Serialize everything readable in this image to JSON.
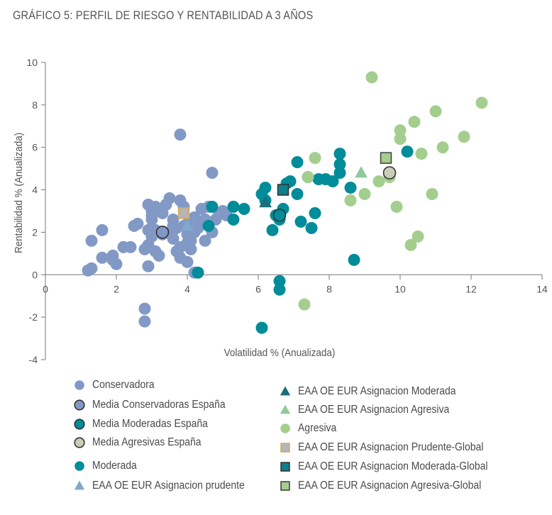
{
  "title": "GRÁFICO 5: PERFIL DE RIESGO Y RENTABILIDAD A 3 AÑOS",
  "chart_data": {
    "type": "scatter",
    "xlabel": "Volatilidad % (Anualizada)",
    "ylabel": "Rentabilidad % (Anualizada)",
    "xlim": [
      0,
      14
    ],
    "ylim": [
      -4,
      10
    ],
    "xticks": [
      "0",
      "2",
      "4",
      "6",
      "8",
      "10",
      "12",
      "14"
    ],
    "yticks": [
      "10",
      "8",
      "6",
      "4",
      "2",
      "0",
      "-2",
      "-4"
    ],
    "grid": false,
    "series": [
      {
        "name": "Conservadora",
        "marker": "circle",
        "color": "#8299C6",
        "border": "none",
        "points": [
          [
            1.2,
            0.2
          ],
          [
            1.3,
            0.3
          ],
          [
            1.3,
            1.6
          ],
          [
            1.6,
            0.8
          ],
          [
            1.6,
            2.1
          ],
          [
            1.9,
            0.7
          ],
          [
            1.9,
            0.9
          ],
          [
            2.0,
            0.5
          ],
          [
            2.2,
            1.3
          ],
          [
            2.4,
            1.3
          ],
          [
            2.5,
            2.3
          ],
          [
            2.6,
            2.4
          ],
          [
            2.8,
            1.2
          ],
          [
            2.9,
            0.4
          ],
          [
            2.9,
            1.4
          ],
          [
            2.9,
            2.1
          ],
          [
            2.9,
            3.3
          ],
          [
            3.0,
            1.8
          ],
          [
            3.0,
            2.6
          ],
          [
            3.0,
            2.8
          ],
          [
            3.1,
            2.1
          ],
          [
            3.1,
            3.2
          ],
          [
            3.1,
            1.1
          ],
          [
            3.2,
            0.9
          ],
          [
            3.3,
            1.9
          ],
          [
            3.3,
            2.9
          ],
          [
            3.4,
            3.3
          ],
          [
            3.5,
            2.0
          ],
          [
            3.5,
            3.6
          ],
          [
            3.6,
            2.1
          ],
          [
            3.6,
            1.7
          ],
          [
            3.6,
            2.6
          ],
          [
            3.7,
            1.1
          ],
          [
            3.7,
            2.2
          ],
          [
            3.8,
            1.3
          ],
          [
            3.8,
            0.8
          ],
          [
            3.8,
            3.5
          ],
          [
            3.9,
            2.3
          ],
          [
            3.9,
            3.2
          ],
          [
            4.0,
            0.6
          ],
          [
            4.0,
            1.5
          ],
          [
            4.0,
            2.4
          ],
          [
            4.1,
            1.2
          ],
          [
            4.1,
            1.6
          ],
          [
            4.2,
            2.0
          ],
          [
            4.2,
            2.7
          ],
          [
            4.2,
            0.1
          ],
          [
            4.3,
            2.2
          ],
          [
            4.4,
            2.5
          ],
          [
            4.4,
            3.1
          ],
          [
            4.5,
            2.6
          ],
          [
            4.5,
            1.6
          ],
          [
            4.6,
            3.2
          ],
          [
            4.7,
            2.0
          ],
          [
            4.8,
            2.6
          ],
          [
            4.9,
            2.9
          ],
          [
            5.0,
            3.0
          ],
          [
            5.1,
            2.8
          ],
          [
            5.3,
            3.2
          ],
          [
            3.8,
            6.6
          ],
          [
            4.7,
            4.8
          ],
          [
            2.8,
            -1.6
          ],
          [
            2.8,
            -2.2
          ],
          [
            3.6,
            2.3
          ],
          [
            3.0,
            3.0
          ],
          [
            4.0,
            1.9
          ]
        ]
      },
      {
        "name": "Moderada",
        "marker": "circle",
        "color": "#008C98",
        "border": "none",
        "points": [
          [
            4.3,
            0.1
          ],
          [
            4.6,
            2.3
          ],
          [
            4.7,
            3.2
          ],
          [
            5.3,
            3.2
          ],
          [
            5.3,
            2.6
          ],
          [
            5.6,
            3.1
          ],
          [
            6.1,
            3.8
          ],
          [
            6.2,
            3.5
          ],
          [
            6.2,
            4.1
          ],
          [
            6.4,
            2.1
          ],
          [
            6.5,
            2.8
          ],
          [
            6.6,
            2.6
          ],
          [
            6.7,
            3.1
          ],
          [
            6.8,
            4.3
          ],
          [
            6.9,
            4.4
          ],
          [
            7.1,
            3.8
          ],
          [
            7.1,
            5.3
          ],
          [
            7.2,
            2.5
          ],
          [
            7.4,
            4.6
          ],
          [
            7.5,
            2.2
          ],
          [
            7.6,
            2.9
          ],
          [
            7.7,
            4.5
          ],
          [
            7.9,
            4.5
          ],
          [
            8.1,
            4.4
          ],
          [
            8.3,
            5.2
          ],
          [
            8.3,
            4.8
          ],
          [
            8.3,
            5.7
          ],
          [
            8.6,
            4.1
          ],
          [
            8.7,
            0.7
          ],
          [
            10.2,
            5.8
          ],
          [
            6.1,
            -2.5
          ],
          [
            6.6,
            -0.3
          ],
          [
            6.6,
            -0.7
          ]
        ]
      },
      {
        "name": "Agresiva",
        "marker": "circle",
        "color": "#A4CE8E",
        "border": "none",
        "points": [
          [
            7.3,
            -1.4
          ],
          [
            7.4,
            4.6
          ],
          [
            7.6,
            5.5
          ],
          [
            8.6,
            3.5
          ],
          [
            9.0,
            3.8
          ],
          [
            9.2,
            9.3
          ],
          [
            9.4,
            4.4
          ],
          [
            9.7,
            4.6
          ],
          [
            9.9,
            3.2
          ],
          [
            10.0,
            6.4
          ],
          [
            10.0,
            6.8
          ],
          [
            10.3,
            1.4
          ],
          [
            10.4,
            7.2
          ],
          [
            10.5,
            1.8
          ],
          [
            10.6,
            5.7
          ],
          [
            10.9,
            3.8
          ],
          [
            11.0,
            7.7
          ],
          [
            11.2,
            6.0
          ],
          [
            11.8,
            6.5
          ],
          [
            12.3,
            8.1
          ]
        ]
      },
      {
        "name": "Media Conservadoras España",
        "marker": "circle",
        "color": "#8299C6",
        "border": "#333333",
        "points": [
          [
            3.3,
            2.0
          ]
        ]
      },
      {
        "name": "Media Moderadas España",
        "marker": "circle",
        "color": "#008C98",
        "border": "#333333",
        "points": [
          [
            6.6,
            2.8
          ]
        ]
      },
      {
        "name": "Media Agresivas España",
        "marker": "circle",
        "color": "#C9CFB6",
        "border": "#333333",
        "points": [
          [
            9.7,
            4.8
          ]
        ]
      },
      {
        "name": "EAA OE EUR Asignacion prudente",
        "marker": "triangle",
        "color": "#7FA8CC",
        "border": "none",
        "points": [
          [
            4.0,
            2.3
          ]
        ]
      },
      {
        "name": "EAA OE EUR Asignacion Moderada",
        "marker": "triangle",
        "color": "#1C6E79",
        "border": "none",
        "points": [
          [
            6.2,
            3.4
          ]
        ]
      },
      {
        "name": "EAA OE EUR Asignacion Agresiva",
        "marker": "triangle",
        "color": "#92C99B",
        "border": "none",
        "points": [
          [
            8.9,
            4.8
          ]
        ]
      },
      {
        "name": "EAA OE EUR Asignacion Prudente-Global",
        "marker": "square",
        "color": "#B6B6B6",
        "border": "#D9A65F",
        "points": [
          [
            3.9,
            2.9
          ]
        ]
      },
      {
        "name": "EAA OE EUR Asignacion Moderada-Global",
        "marker": "square",
        "color": "#0F7F8C",
        "border": "#333333",
        "points": [
          [
            6.7,
            4.0
          ]
        ]
      },
      {
        "name": "EAA OE EUR Asignacion Agresiva-Global",
        "marker": "square",
        "color": "#A4CE8E",
        "border": "#444444",
        "points": [
          [
            9.6,
            5.5
          ]
        ]
      }
    ]
  },
  "legend": {
    "left": [
      {
        "label": "Conservadora",
        "marker": "circle",
        "color": "#8299C6",
        "border": "none"
      },
      {
        "label": "Media Conservadoras España",
        "marker": "circle",
        "color": "#8299C6",
        "border": "#333333"
      },
      {
        "label": "Media Moderadas España",
        "marker": "circle",
        "color": "#008C98",
        "border": "#333333"
      },
      {
        "label": "Media Agresivas España",
        "marker": "circle",
        "color": "#C9CFB6",
        "border": "#333333"
      },
      {
        "label": "Moderada",
        "marker": "circle",
        "color": "#008C98",
        "border": "none"
      },
      {
        "label": "EAA OE EUR Asignacion prudente",
        "marker": "triangle",
        "color": "#7FA8CC",
        "border": "none"
      }
    ],
    "right": [
      {
        "label": "EAA OE EUR Asignacion Moderada",
        "marker": "triangle",
        "color": "#1C6E79",
        "border": "none"
      },
      {
        "label": "EAA OE EUR Asignacion Agresiva",
        "marker": "triangle",
        "color": "#92C99B",
        "border": "none"
      },
      {
        "label": "Agresiva",
        "marker": "circle",
        "color": "#A4CE8E",
        "border": "none"
      },
      {
        "label": "EAA OE EUR Asignacion Prudente-Global",
        "marker": "square",
        "color": "#B6B6B6",
        "border": "#D9A65F"
      },
      {
        "label": "EAA OE EUR Asignacion Moderada-Global",
        "marker": "square",
        "color": "#0F7F8C",
        "border": "#333333"
      },
      {
        "label": "EAA OE EUR Asignacion Agresiva-Global",
        "marker": "square",
        "color": "#A4CE8E",
        "border": "#444444"
      }
    ]
  }
}
